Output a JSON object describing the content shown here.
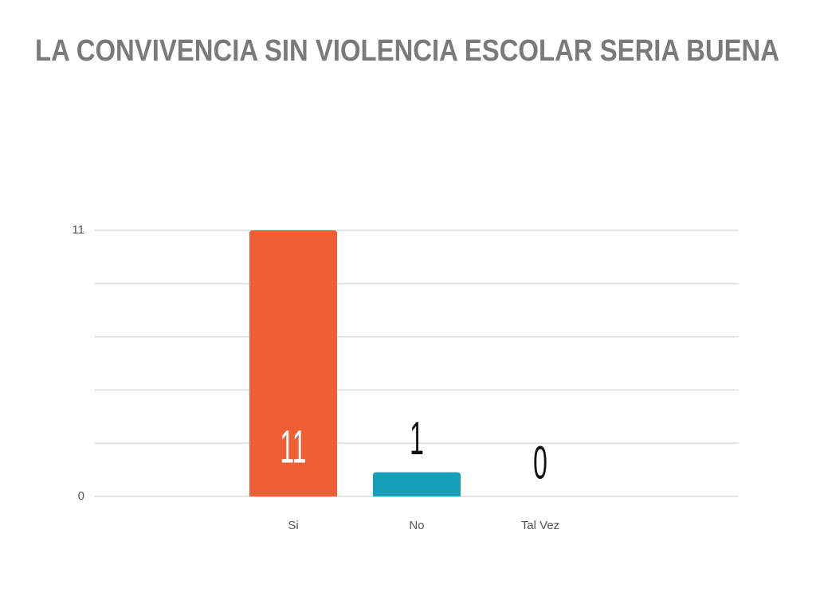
{
  "chart_data": {
    "type": "bar",
    "title": "LA CONVIVENCIA SIN VIOLENCIA ESCOLAR SERIA BUENA",
    "categories": [
      "Si",
      "No",
      "Tal Vez"
    ],
    "values": [
      11,
      1,
      0
    ],
    "colors": [
      "#f05f33",
      "#149fba",
      "#8cc63f"
    ],
    "ylim": [
      0,
      11
    ],
    "yticks": [
      0,
      11
    ],
    "grid": true,
    "grid_divisions": 5
  }
}
